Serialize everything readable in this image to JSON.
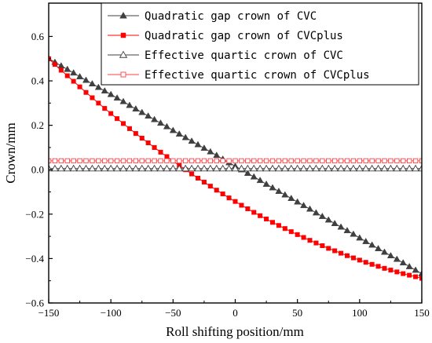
{
  "chart_data": {
    "type": "scatter",
    "xlabel": "Roll shifting position/mm",
    "ylabel": "Crown/mm",
    "xlim": [
      -150,
      150
    ],
    "ylim": [
      -0.6,
      0.75
    ],
    "xticks": [
      -150,
      -100,
      -50,
      0,
      50,
      100,
      150
    ],
    "xtick_labels": [
      "−150",
      "−100",
      "−50",
      "0",
      "50",
      "100",
      "150"
    ],
    "yticks": [
      -0.6,
      -0.4,
      -0.2,
      0.0,
      0.2,
      0.4,
      0.6
    ],
    "ytick_labels": [
      "−0.6",
      "−0.4",
      "−0.2",
      "0.0",
      "0.2",
      "0.4",
      "0.6"
    ],
    "grid": false,
    "legend_position": "top-right",
    "x": [
      -150,
      -145,
      -140,
      -135,
      -130,
      -125,
      -120,
      -115,
      -110,
      -105,
      -100,
      -95,
      -90,
      -85,
      -80,
      -75,
      -70,
      -65,
      -60,
      -55,
      -50,
      -45,
      -40,
      -35,
      -30,
      -25,
      -20,
      -15,
      -10,
      -5,
      0,
      5,
      10,
      15,
      20,
      25,
      30,
      35,
      40,
      45,
      50,
      55,
      60,
      65,
      70,
      75,
      80,
      85,
      90,
      95,
      100,
      105,
      110,
      115,
      120,
      125,
      130,
      135,
      140,
      145,
      150
    ],
    "series": [
      {
        "name": "Quadratic gap crown of CVC",
        "marker": "triangle-filled",
        "color": "#404040",
        "values": [
          0.5,
          0.484,
          0.468,
          0.452,
          0.436,
          0.419,
          0.403,
          0.387,
          0.371,
          0.355,
          0.339,
          0.323,
          0.307,
          0.29,
          0.274,
          0.258,
          0.242,
          0.226,
          0.21,
          0.194,
          0.177,
          0.161,
          0.145,
          0.129,
          0.113,
          0.097,
          0.081,
          0.065,
          0.048,
          0.032,
          0.016,
          0.0,
          -0.016,
          -0.032,
          -0.048,
          -0.065,
          -0.081,
          -0.097,
          -0.113,
          -0.129,
          -0.145,
          -0.161,
          -0.177,
          -0.194,
          -0.21,
          -0.226,
          -0.242,
          -0.258,
          -0.274,
          -0.29,
          -0.307,
          -0.323,
          -0.339,
          -0.355,
          -0.371,
          -0.387,
          -0.403,
          -0.419,
          -0.436,
          -0.452,
          -0.468
        ]
      },
      {
        "name": "Quadratic gap crown of CVCplus",
        "marker": "square-filled",
        "color": "#ff0000",
        "values": [
          0.5,
          0.474,
          0.448,
          0.423,
          0.398,
          0.373,
          0.348,
          0.324,
          0.3,
          0.276,
          0.253,
          0.23,
          0.208,
          0.185,
          0.163,
          0.142,
          0.121,
          0.1,
          0.079,
          0.059,
          0.039,
          0.019,
          0.0,
          -0.019,
          -0.038,
          -0.056,
          -0.074,
          -0.092,
          -0.109,
          -0.127,
          -0.143,
          -0.16,
          -0.176,
          -0.192,
          -0.207,
          -0.222,
          -0.237,
          -0.251,
          -0.265,
          -0.279,
          -0.292,
          -0.305,
          -0.318,
          -0.33,
          -0.342,
          -0.354,
          -0.365,
          -0.376,
          -0.387,
          -0.397,
          -0.407,
          -0.417,
          -0.426,
          -0.435,
          -0.444,
          -0.452,
          -0.46,
          -0.468,
          -0.475,
          -0.482,
          -0.489
        ]
      },
      {
        "name": "Effective quartic crown of CVC",
        "marker": "triangle-open",
        "color": "#404040",
        "values": [
          0.005,
          0.005,
          0.005,
          0.005,
          0.005,
          0.005,
          0.005,
          0.005,
          0.005,
          0.005,
          0.005,
          0.005,
          0.005,
          0.005,
          0.005,
          0.005,
          0.005,
          0.005,
          0.005,
          0.005,
          0.005,
          0.005,
          0.005,
          0.005,
          0.005,
          0.005,
          0.005,
          0.005,
          0.005,
          0.005,
          0.005,
          0.005,
          0.005,
          0.005,
          0.005,
          0.005,
          0.005,
          0.005,
          0.005,
          0.005,
          0.005,
          0.005,
          0.005,
          0.005,
          0.005,
          0.005,
          0.005,
          0.005,
          0.005,
          0.005,
          0.005,
          0.005,
          0.005,
          0.005,
          0.005,
          0.005,
          0.005,
          0.005,
          0.005,
          0.005,
          0.005
        ]
      },
      {
        "name": "Effective quartic crown of CVCplus",
        "marker": "square-open",
        "color": "#ff4040",
        "values": [
          0.04,
          0.04,
          0.04,
          0.04,
          0.04,
          0.04,
          0.04,
          0.04,
          0.04,
          0.04,
          0.04,
          0.04,
          0.04,
          0.04,
          0.04,
          0.04,
          0.04,
          0.04,
          0.04,
          0.04,
          0.04,
          0.04,
          0.04,
          0.04,
          0.04,
          0.04,
          0.04,
          0.04,
          0.04,
          0.04,
          0.04,
          0.04,
          0.04,
          0.04,
          0.04,
          0.04,
          0.04,
          0.04,
          0.04,
          0.04,
          0.04,
          0.04,
          0.04,
          0.04,
          0.04,
          0.04,
          0.04,
          0.04,
          0.04,
          0.04,
          0.04,
          0.04,
          0.04,
          0.04,
          0.04,
          0.04,
          0.04,
          0.04,
          0.04,
          0.04,
          0.04
        ]
      }
    ]
  }
}
